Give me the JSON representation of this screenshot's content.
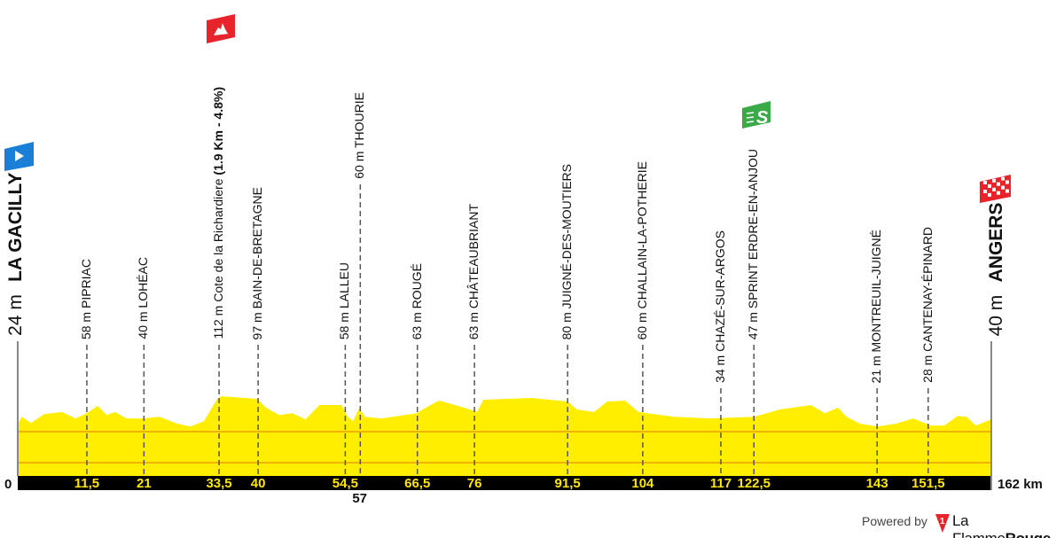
{
  "colors": {
    "profile_fill": "#ffee00",
    "grid_line": "#f0b400",
    "axis_bar": "#000000",
    "km_text": "#ffe600",
    "start_flag": "#1a7fd6",
    "climb_flag": "#e8232b",
    "sprint_flag": "#3aaa48",
    "finish_flag": "#e8232b"
  },
  "start": {
    "elevation": "24 m",
    "name": "LA GACILLY",
    "icon": "start-flag-play-icon"
  },
  "finish": {
    "elevation": "40 m",
    "name": "ANGERS",
    "icon": "finish-checkered-flag-icon"
  },
  "markers": [
    {
      "km": "11,5",
      "label": "58 m PIPRIAC",
      "bold": ""
    },
    {
      "km": "21",
      "label": "40 m LOHÉAC",
      "bold": ""
    },
    {
      "km": "33,5",
      "label": "112 m Cote de la Richardiere ",
      "bold": "(1.9 Km - 4.8%)",
      "icon": "climb-mountain-icon"
    },
    {
      "km": "40",
      "label": "97 m BAIN-DE-BRETAGNE",
      "bold": ""
    },
    {
      "km": "54,5",
      "label": "58 m LALLEU",
      "bold": ""
    },
    {
      "km": "57",
      "label": "60 m THOURIE",
      "bold": ""
    },
    {
      "km": "66,5",
      "label": "63 m ROUGÉ",
      "bold": ""
    },
    {
      "km": "76",
      "label": "63 m CHÂTEAUBRIANT",
      "bold": ""
    },
    {
      "km": "91,5",
      "label": "80 m JUIGNÉ-DES-MOUTIERS",
      "bold": ""
    },
    {
      "km": "104",
      "label": "60 m CHALLAIN-LA-POTHERIE",
      "bold": ""
    },
    {
      "km": "117",
      "label": "34 m CHAZÉ-SUR-ARGOS",
      "bold": ""
    },
    {
      "km": "122,5",
      "label": "47 m SPRINT ERDRE-EN-ANJOU",
      "bold": "",
      "icon": "sprint-s-icon"
    },
    {
      "km": "143",
      "label": "21 m MONTREUIL-JUIGNÉ",
      "bold": ""
    },
    {
      "km": "151,5",
      "label": "28 m CANTENAY-ÉPINARD",
      "bold": ""
    }
  ],
  "axis": {
    "start": "0",
    "end": "162 km",
    "total_km": 162
  },
  "profile": [
    [
      0,
      24
    ],
    [
      0.7,
      48
    ],
    [
      2.2,
      27
    ],
    [
      4.4,
      57
    ],
    [
      7.4,
      64
    ],
    [
      9.6,
      42
    ],
    [
      11.5,
      60
    ],
    [
      13.3,
      85
    ],
    [
      14.8,
      54
    ],
    [
      16.2,
      64
    ],
    [
      18.1,
      42
    ],
    [
      20.7,
      42
    ],
    [
      23.6,
      48
    ],
    [
      26.6,
      24
    ],
    [
      28.8,
      15
    ],
    [
      31,
      33
    ],
    [
      33.2,
      109
    ],
    [
      33.9,
      118
    ],
    [
      39.8,
      109
    ],
    [
      41.3,
      79
    ],
    [
      43.5,
      54
    ],
    [
      45.7,
      60
    ],
    [
      47.9,
      39
    ],
    [
      50.2,
      88
    ],
    [
      53.9,
      88
    ],
    [
      54.9,
      48
    ],
    [
      55.8,
      33
    ],
    [
      56.8,
      76
    ],
    [
      57.8,
      48
    ],
    [
      60.5,
      42
    ],
    [
      66.4,
      60
    ],
    [
      67.9,
      79
    ],
    [
      70.1,
      103
    ],
    [
      72.3,
      91
    ],
    [
      75.2,
      73
    ],
    [
      76.4,
      64
    ],
    [
      77.5,
      106
    ],
    [
      85.6,
      112
    ],
    [
      91.5,
      100
    ],
    [
      93,
      73
    ],
    [
      95.9,
      64
    ],
    [
      98.1,
      100
    ],
    [
      101.1,
      103
    ],
    [
      103.3,
      64
    ],
    [
      109.2,
      48
    ],
    [
      115.1,
      42
    ],
    [
      122.5,
      48
    ],
    [
      126.9,
      73
    ],
    [
      132,
      88
    ],
    [
      134.3,
      60
    ],
    [
      136.5,
      79
    ],
    [
      137.9,
      48
    ],
    [
      140.2,
      24
    ],
    [
      143.1,
      15
    ],
    [
      146.1,
      24
    ],
    [
      149,
      42
    ],
    [
      152,
      18
    ],
    [
      154.2,
      18
    ],
    [
      156.4,
      51
    ],
    [
      157.9,
      48
    ],
    [
      159.4,
      18
    ],
    [
      162,
      39
    ]
  ],
  "footer": {
    "powered": "Powered by",
    "brand_a": "La Flamme",
    "brand_b": "Rouge"
  }
}
